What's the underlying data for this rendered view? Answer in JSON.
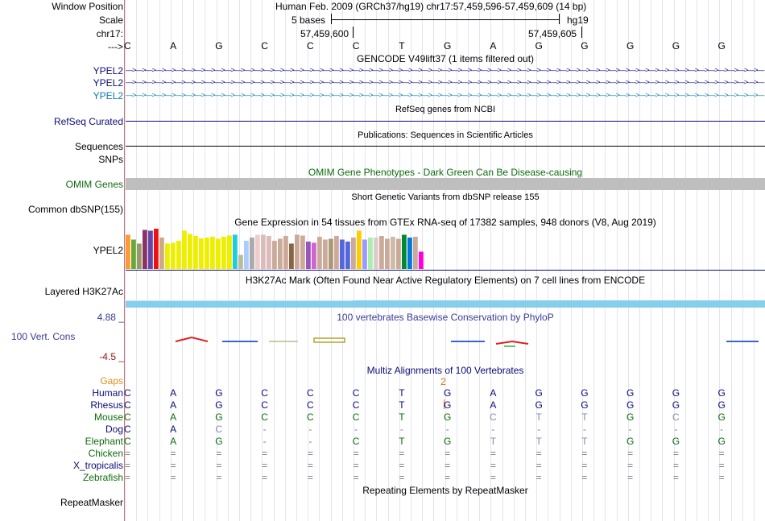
{
  "header": {
    "labels": [
      "Window Position",
      "Scale",
      "chr17:",
      "--->"
    ],
    "position_text": "Human Feb. 2009 (GRCh37/hg19)   chr17:57,459,596-57,459,609 (14 bp)",
    "scale_text": "5 bases",
    "scale_db": "hg19",
    "ruler_left": "57,459,600",
    "ruler_right": "57,459,605"
  },
  "bases": [
    "C",
    "A",
    "G",
    "C",
    "C",
    "C",
    "T",
    "G",
    "A",
    "G",
    "G",
    "G",
    "G",
    "G"
  ],
  "tracks": {
    "gencode_title": "GENCODE V49lift37 (1 items filtered out)",
    "gencode_genes": [
      "YPEL2",
      "YPEL2",
      "YPEL2"
    ],
    "gencode_colors": [
      "#0c0c78",
      "#0c0c78",
      "#0c7ca8"
    ],
    "refseq_title": "RefSeq genes from NCBI",
    "refseq_label": "RefSeq Curated",
    "pubs_title": "Publications: Sequences in Scientific Articles",
    "pubs_label": "Sequences",
    "snps_label": "SNPs",
    "omim_title": "OMIM Gene Phenotypes - Dark Green Can Be Disease-causing",
    "omim_label": "OMIM Genes",
    "dbsnp_title": "Short Genetic Variants from dbSNP release 155",
    "dbsnp_label": "Common dbSNP(155)",
    "gtex_title": "Gene Expression in 54 tissues from GTEx RNA-seq of 17382 samples, 948 donors (V8, Aug 2019)",
    "gtex_label": "YPEL2",
    "h3k27_title": "H3K27Ac Mark (Often Found Near Active Regulatory Elements) on 7 cell lines from ENCODE",
    "h3k27_label": "Layered H3K27Ac",
    "cons_title": "100 vertebrates Basewise Conservation by PhyloP",
    "cons_label": "100 Vert. Cons",
    "cons_max": "4.88 _",
    "cons_min": "-4.5 _",
    "multiz_title": "Multiz Alignments of 100 Vertebrates",
    "gaps_label": "Gaps",
    "gap_count": "2",
    "rmsk_title": "Repeating Elements by RepeatMasker",
    "rmsk_label": "RepeatMasker"
  },
  "gtex_bars": [
    {
      "v": 0.85,
      "c": "#ff9933"
    },
    {
      "v": 0.73,
      "c": "#66aa33"
    },
    {
      "v": 0.63,
      "c": "#999966"
    },
    {
      "v": 0.97,
      "c": "#883366"
    },
    {
      "v": 0.95,
      "c": "#6644aa"
    },
    {
      "v": 1.0,
      "c": "#ee1111"
    },
    {
      "v": 0.78,
      "c": "#ccaa88"
    },
    {
      "v": 0.63,
      "c": "#eeee00"
    },
    {
      "v": 0.65,
      "c": "#eeee00"
    },
    {
      "v": 0.7,
      "c": "#eeee00"
    },
    {
      "v": 0.95,
      "c": "#eeee00"
    },
    {
      "v": 0.87,
      "c": "#eeee00"
    },
    {
      "v": 0.82,
      "c": "#eeee00"
    },
    {
      "v": 0.76,
      "c": "#eeee00"
    },
    {
      "v": 0.78,
      "c": "#eeee00"
    },
    {
      "v": 0.8,
      "c": "#eeee00"
    },
    {
      "v": 0.75,
      "c": "#eeee00"
    },
    {
      "v": 0.8,
      "c": "#eeee00"
    },
    {
      "v": 0.83,
      "c": "#eeee00"
    },
    {
      "v": 0.85,
      "c": "#22ccdd"
    },
    {
      "v": 0.35,
      "c": "#bbbb99"
    },
    {
      "v": 0.7,
      "c": "#aaccff"
    },
    {
      "v": 0.78,
      "c": "#aaaaaa"
    },
    {
      "v": 0.85,
      "c": "#eecccc"
    },
    {
      "v": 0.85,
      "c": "#ddbbbb"
    },
    {
      "v": 0.82,
      "c": "#ddbbbb"
    },
    {
      "v": 0.7,
      "c": "#ccaa99"
    },
    {
      "v": 0.75,
      "c": "#ccaa99"
    },
    {
      "v": 0.82,
      "c": "#ccaa99"
    },
    {
      "v": 0.63,
      "c": "#886644"
    },
    {
      "v": 0.85,
      "c": "#ccaa99"
    },
    {
      "v": 0.83,
      "c": "#ccaa99"
    },
    {
      "v": 0.68,
      "c": "#9955bb"
    },
    {
      "v": 0.65,
      "c": "#cc66cc"
    },
    {
      "v": 0.8,
      "c": "#ccaa99"
    },
    {
      "v": 0.73,
      "c": "#ccaa99"
    },
    {
      "v": 0.75,
      "c": "#aa9977"
    },
    {
      "v": 0.82,
      "c": "#ccaa99"
    },
    {
      "v": 0.73,
      "c": "#5566dd"
    },
    {
      "v": 0.68,
      "c": "#5566dd"
    },
    {
      "v": 0.78,
      "c": "#ccaa99"
    },
    {
      "v": 0.95,
      "c": "#ffcc00"
    },
    {
      "v": 0.73,
      "c": "#9999ff"
    },
    {
      "v": 0.78,
      "c": "#aaeeaa"
    },
    {
      "v": 0.78,
      "c": "#ddcccc"
    },
    {
      "v": 0.82,
      "c": "#ccaa99"
    },
    {
      "v": 0.75,
      "c": "#ccaa99"
    },
    {
      "v": 0.8,
      "c": "#ccbbaa"
    },
    {
      "v": 0.75,
      "c": "#ccaa99"
    },
    {
      "v": 0.85,
      "c": "#008833"
    },
    {
      "v": 0.78,
      "c": "#0077dd"
    },
    {
      "v": 0.8,
      "c": "#ccaa99"
    },
    {
      "v": 0.43,
      "c": "#ff00dd"
    }
  ],
  "species": [
    {
      "name": "Human",
      "color": "#0c0c78",
      "seq": [
        "C",
        "A",
        "G",
        "C",
        "C",
        "C",
        "T",
        "G",
        "A",
        "G",
        "G",
        "G",
        "G",
        "G"
      ]
    },
    {
      "name": "Rhesus",
      "color": "#0c0c78",
      "seq": [
        "C",
        "A",
        "G",
        "C",
        "C",
        "C",
        "T",
        "G",
        "A",
        "G",
        "G",
        "G",
        "G",
        "G"
      ]
    },
    {
      "name": "Mouse",
      "color": "#0c6c0c",
      "seq": [
        "C",
        "A",
        "G",
        "C",
        "C",
        "C",
        "T",
        "G",
        "C",
        "T",
        "T",
        "G",
        "C",
        "G"
      ]
    },
    {
      "name": "Dog",
      "color": "#0c0c78",
      "seq": [
        "C",
        "A",
        "C",
        "-",
        "-",
        "-",
        "-",
        "-",
        "-",
        "-",
        "-",
        "-",
        "-",
        "-"
      ]
    },
    {
      "name": "Elephant",
      "color": "#0c6c0c",
      "seq": [
        "C",
        "A",
        "G",
        "-",
        "-",
        "C",
        "T",
        "G",
        "T",
        "T",
        "T",
        "G",
        "G",
        "G"
      ]
    },
    {
      "name": "Chicken",
      "color": "#0c6c0c",
      "seq": [
        "=",
        "=",
        "=",
        "=",
        "=",
        "=",
        "=",
        "=",
        "=",
        "=",
        "=",
        "=",
        "=",
        "="
      ]
    },
    {
      "name": "X_tropicalis",
      "color": "#0c0c78",
      "seq": [
        "=",
        "=",
        "=",
        "=",
        "=",
        "=",
        "=",
        "=",
        "=",
        "=",
        "=",
        "=",
        "=",
        "="
      ]
    },
    {
      "name": "Zebrafish",
      "color": "#0c6c0c",
      "seq": [
        "=",
        "=",
        "=",
        "=",
        "=",
        "=",
        "=",
        "=",
        "=",
        "=",
        "=",
        "=",
        "=",
        "="
      ]
    }
  ]
}
